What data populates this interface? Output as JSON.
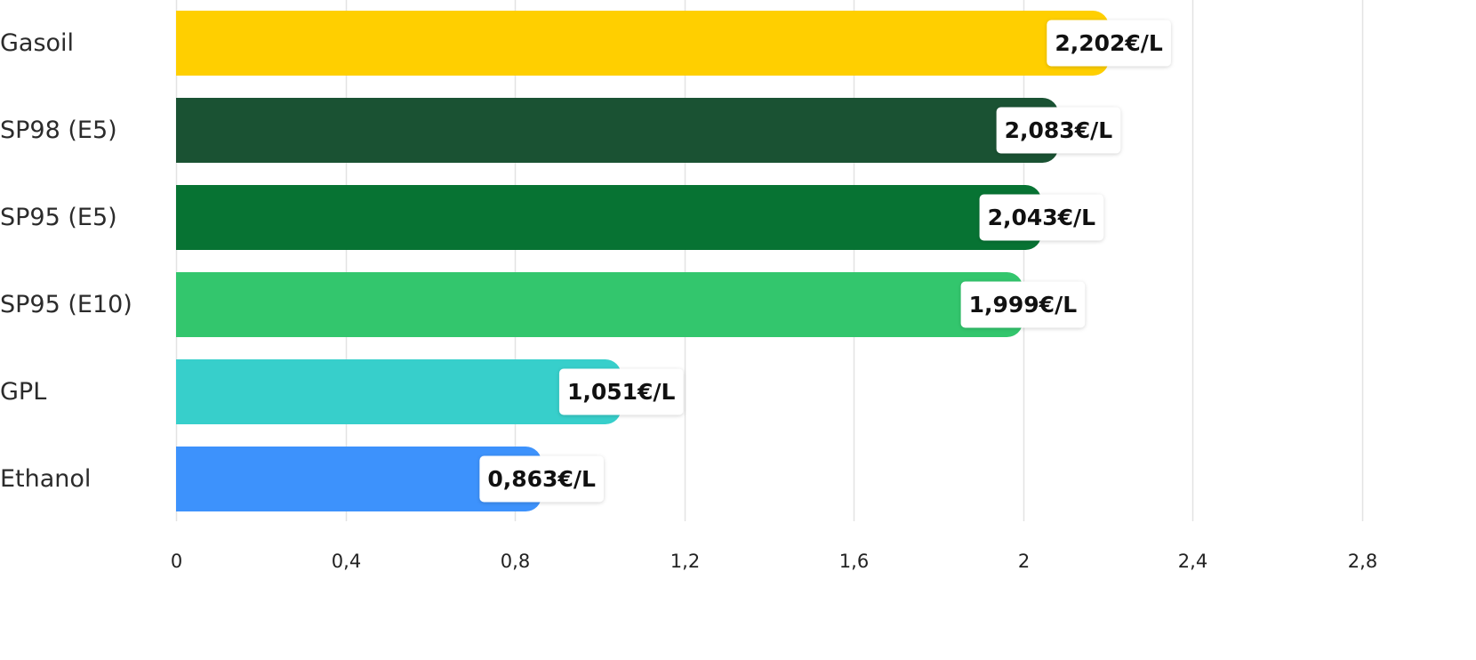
{
  "chart_data": {
    "type": "bar",
    "orientation": "horizontal",
    "categories": [
      "Gasoil",
      "SP98 (E5)",
      "SP95 (E5)",
      "SP95 (E10)",
      "GPL",
      "Ethanol"
    ],
    "values": [
      2.202,
      2.083,
      2.043,
      1.999,
      1.051,
      0.863
    ],
    "value_labels": [
      "2,202€/L",
      "2,083€/L",
      "2,043€/L",
      "1,999€/L",
      "1,051€/L",
      "0,863€/L"
    ],
    "colors": [
      "#FFCF00",
      "#1A5233",
      "#077333",
      "#33C66D",
      "#37CFCB",
      "#3D92FC"
    ],
    "xlim": [
      0,
      2.8
    ],
    "x_ticks": [
      0,
      0.4,
      0.8,
      1.2,
      1.6,
      2,
      2.4,
      2.8
    ],
    "x_tick_labels": [
      "0",
      "0,4",
      "0,8",
      "1,2",
      "1,6",
      "2",
      "2,4",
      "2,8"
    ],
    "grid": true,
    "gridline_color": "#e3e3e3",
    "title": "",
    "xlabel": "",
    "ylabel": ""
  }
}
